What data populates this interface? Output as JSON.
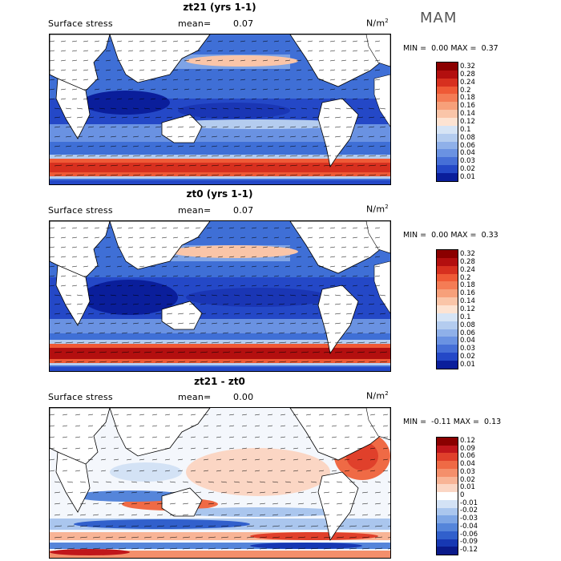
{
  "season": "MAM",
  "panels": [
    {
      "title": "zt21 (yrs 1-1)",
      "variable": "Surface stress",
      "mean_label": "mean=",
      "mean_value": "0.07",
      "units": "N/m",
      "units_sup": "2",
      "min_label": "MIN =",
      "min_value": "0.00",
      "max_label": "MAX =",
      "max_value": "0.37",
      "colorbar": [
        "0.32",
        "0.28",
        "0.24",
        "0.2",
        "0.18",
        "0.16",
        "0.14",
        "0.12",
        "0.1",
        "0.08",
        "0.06",
        "0.04",
        "0.03",
        "0.02",
        "0.01"
      ],
      "colors": [
        "#8b0000",
        "#b30f0f",
        "#d7301f",
        "#ef5a36",
        "#f47c55",
        "#f7a07a",
        "#fac5a8",
        "#fde3d2",
        "#d6e4f5",
        "#b4ccef",
        "#8fb0e9",
        "#6a92e2",
        "#466fd7",
        "#2448c7",
        "#0a1e9b"
      ]
    },
    {
      "title": "zt0 (yrs 1-1)",
      "variable": "Surface stress",
      "mean_label": "mean=",
      "mean_value": "0.07",
      "units": "N/m",
      "units_sup": "2",
      "min_label": "MIN =",
      "min_value": "0.00",
      "max_label": "MAX =",
      "max_value": "0.33",
      "colorbar": [
        "0.32",
        "0.28",
        "0.24",
        "0.2",
        "0.18",
        "0.16",
        "0.14",
        "0.12",
        "0.1",
        "0.08",
        "0.06",
        "0.04",
        "0.03",
        "0.02",
        "0.01"
      ],
      "colors": [
        "#8b0000",
        "#b30f0f",
        "#d7301f",
        "#ef5a36",
        "#f47c55",
        "#f7a07a",
        "#fac5a8",
        "#fde3d2",
        "#d6e4f5",
        "#b4ccef",
        "#8fb0e9",
        "#6a92e2",
        "#466fd7",
        "#2448c7",
        "#0a1e9b"
      ]
    },
    {
      "title": "zt21 - zt0",
      "variable": "Surface stress",
      "mean_label": "mean=",
      "mean_value": "0.00",
      "units": "N/m",
      "units_sup": "2",
      "min_label": "MIN =",
      "min_value": "-0.11",
      "max_label": "MAX =",
      "max_value": "0.13",
      "colorbar": [
        "0.12",
        "0.09",
        "0.06",
        "0.04",
        "0.03",
        "0.02",
        "0.01",
        "0",
        "-0.01",
        "-0.02",
        "-0.03",
        "-0.04",
        "-0.06",
        "-0.09",
        "-0.12"
      ],
      "colors": [
        "#8b0000",
        "#c0161b",
        "#e0402b",
        "#ef6a45",
        "#f48f6b",
        "#f8b496",
        "#fbd6c4",
        "#ffffff",
        "#d3e2f5",
        "#aac6ee",
        "#7ea6e5",
        "#5585da",
        "#3160cc",
        "#1738b3",
        "#0a1a8a"
      ]
    }
  ]
}
